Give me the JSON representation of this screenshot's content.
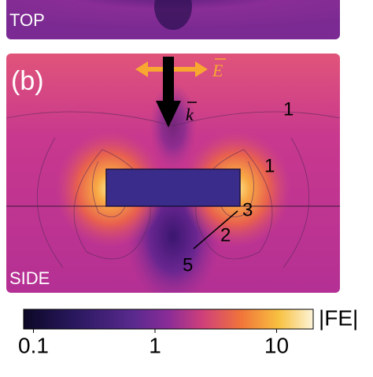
{
  "panel_top": {
    "label": "TOP"
  },
  "panel_b": {
    "label": "(b)",
    "polarization": "E",
    "wavevector": "k",
    "side_label": "SIDE",
    "contour_labels": [
      "1",
      "1",
      "3",
      "2",
      "5"
    ]
  },
  "colorbar": {
    "title": "|FE|",
    "log_scale": true,
    "lim": [
      0.083,
      20
    ],
    "ticks": [
      0.1,
      1,
      10
    ]
  }
}
